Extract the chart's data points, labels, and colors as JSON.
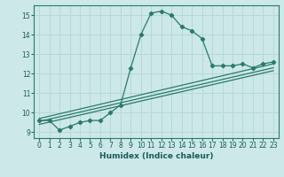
{
  "xlabel": "Humidex (Indice chaleur)",
  "bg_color": "#cce8e8",
  "grid_color": "#b8d8d8",
  "line_color": "#2a7a6a",
  "xlim": [
    -0.5,
    23.5
  ],
  "ylim": [
    8.7,
    15.5
  ],
  "xticks": [
    0,
    1,
    2,
    3,
    4,
    5,
    6,
    7,
    8,
    9,
    10,
    11,
    12,
    13,
    14,
    15,
    16,
    17,
    18,
    19,
    20,
    21,
    22,
    23
  ],
  "yticks": [
    9,
    10,
    11,
    12,
    13,
    14,
    15
  ],
  "curve1_x": [
    0,
    1,
    2,
    3,
    4,
    5,
    6,
    7,
    8,
    9,
    10,
    11,
    12,
    13,
    14,
    15,
    16,
    17,
    18,
    19,
    20,
    21,
    22,
    23
  ],
  "curve1_y": [
    9.6,
    9.6,
    9.1,
    9.3,
    9.5,
    9.6,
    9.6,
    10.0,
    10.4,
    12.3,
    14.0,
    15.1,
    15.2,
    15.0,
    14.4,
    14.2,
    13.8,
    12.4,
    12.4,
    12.4,
    12.5,
    12.3,
    12.5,
    12.6
  ],
  "line2_x": [
    0,
    23
  ],
  "line2_y": [
    9.4,
    12.15
  ],
  "line3_x": [
    0,
    23
  ],
  "line3_y": [
    9.55,
    12.3
  ],
  "line4_x": [
    0,
    23
  ],
  "line4_y": [
    9.7,
    12.5
  ]
}
